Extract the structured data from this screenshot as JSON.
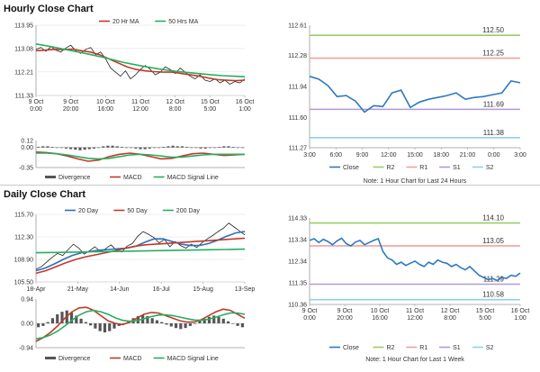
{
  "sections": {
    "hourly_title": "Hourly Close Chart",
    "daily_title": "Daily Close Chart"
  },
  "colors": {
    "price": "#222222",
    "ma_short": "#c0392b",
    "ma_long": "#27ae60",
    "ma_mid": "#2e6fb7",
    "close": "#2e79c0",
    "r2": "#9acd6a",
    "r1": "#f0a0a0",
    "s1": "#b39ad8",
    "s2": "#8fd0e8",
    "hist": "#555555",
    "macd": "#c0392b",
    "signal": "#27ae60"
  },
  "chart_data": [
    {
      "id": "hourly-price",
      "type": "line",
      "legend": [
        {
          "name": "20 Hr MA",
          "color_key": "ma_short"
        },
        {
          "name": "50 Hrs MA",
          "color_key": "ma_long"
        }
      ],
      "yticks": [
        "113.95",
        "113.08",
        "112.21",
        "111.33"
      ],
      "ylim": [
        111.33,
        113.95
      ],
      "xticks": [
        [
          "9 Oct",
          "0:00"
        ],
        [
          "9 Oct",
          "20:00"
        ],
        [
          "10 Oct",
          "16:00"
        ],
        [
          "11 Oct",
          "12:00"
        ],
        [
          "12 Oct",
          "8:00"
        ],
        [
          "15 Oct",
          "5:00"
        ],
        [
          "16 Oct",
          "1:00"
        ]
      ],
      "series": [
        {
          "color_key": "price",
          "values": [
            113.05,
            113.12,
            112.98,
            113.15,
            113.02,
            112.95,
            113.1,
            113.2,
            113.0,
            112.9,
            113.05,
            113.12,
            112.85,
            112.95,
            112.7,
            112.35,
            112.2,
            112.05,
            112.25,
            111.95,
            112.1,
            112.3,
            112.45,
            112.3,
            112.1,
            112.2,
            112.4,
            112.3,
            112.15,
            112.35,
            112.2,
            112.05,
            111.95,
            112.1,
            111.9,
            111.85,
            111.95,
            111.8,
            111.9,
            111.75,
            111.85,
            111.8,
            111.95
          ]
        },
        {
          "name": "20 Hr MA",
          "color_key": "ma_short",
          "values": [
            113.0,
            113.02,
            113.05,
            113.04,
            113.06,
            113.0,
            112.95,
            112.85,
            112.7,
            112.55,
            112.4,
            112.3,
            112.25,
            112.22,
            112.2,
            112.2,
            112.15,
            112.1,
            112.05,
            111.98,
            111.92,
            111.9,
            111.88,
            111.9
          ]
        },
        {
          "name": "50 Hrs MA",
          "color_key": "ma_long",
          "values": [
            113.25,
            113.18,
            113.1,
            113.02,
            112.94,
            112.85,
            112.76,
            112.66,
            112.56,
            112.48,
            112.4,
            112.33,
            112.27,
            112.22,
            112.18,
            112.14,
            112.1,
            112.07,
            112.05,
            112.03
          ]
        }
      ]
    },
    {
      "id": "hourly-macd",
      "type": "line",
      "legend": [
        {
          "name": "Divergence",
          "color_key": "hist"
        },
        {
          "name": "MACD",
          "color_key": "macd"
        },
        {
          "name": "MACD Signal Line",
          "color_key": "signal"
        }
      ],
      "yticks": [
        "0.12",
        "0.00",
        "-0.35"
      ],
      "ylim": [
        -0.35,
        0.12
      ],
      "histogram": [
        0.01,
        0.02,
        0.02,
        0.01,
        0.0,
        -0.01,
        -0.02,
        -0.03,
        -0.04,
        -0.05,
        -0.04,
        -0.03,
        -0.02,
        0.0,
        0.02,
        0.03,
        0.03,
        0.02,
        0.01,
        0.0,
        -0.01,
        -0.02,
        -0.03,
        -0.03,
        -0.02,
        -0.01,
        0.0,
        0.01,
        0.02,
        0.03,
        0.02,
        0.02,
        0.01,
        0.0,
        -0.01,
        -0.02,
        -0.02,
        -0.01,
        0.0,
        0.01,
        0.02,
        0.02,
        0.01,
        0.0,
        -0.01
      ],
      "series": [
        {
          "name": "MACD",
          "color_key": "macd",
          "values": [
            -0.08,
            -0.09,
            -0.11,
            -0.15,
            -0.2,
            -0.24,
            -0.22,
            -0.16,
            -0.12,
            -0.1,
            -0.12,
            -0.16,
            -0.2,
            -0.19,
            -0.15,
            -0.11,
            -0.1,
            -0.12,
            -0.14,
            -0.13,
            -0.12
          ]
        },
        {
          "name": "MACD Signal Line",
          "color_key": "signal",
          "values": [
            -0.1,
            -0.1,
            -0.11,
            -0.13,
            -0.16,
            -0.19,
            -0.2,
            -0.19,
            -0.16,
            -0.13,
            -0.12,
            -0.13,
            -0.15,
            -0.17,
            -0.17,
            -0.15,
            -0.13,
            -0.12,
            -0.12,
            -0.12,
            -0.12
          ]
        }
      ]
    },
    {
      "id": "hourly-pivot",
      "type": "line",
      "yticks": [
        "112.61",
        "112.28",
        "111.94",
        "111.60",
        "111.27"
      ],
      "ylim": [
        111.27,
        112.61
      ],
      "xticks": [
        "3:00",
        "6:00",
        "9:00",
        "12:00",
        "15:00",
        "18:00",
        "21:00",
        "0:00",
        "3:00"
      ],
      "levels": [
        {
          "name": "R2",
          "value": 112.5,
          "label": "112.50",
          "color_key": "r2"
        },
        {
          "name": "R1",
          "value": 112.25,
          "label": "112.25",
          "color_key": "r1"
        },
        {
          "name": "S1",
          "value": 111.69,
          "label": "111.69",
          "color_key": "s1"
        },
        {
          "name": "S2",
          "value": 111.38,
          "label": "111.38",
          "color_key": "s2"
        }
      ],
      "series": [
        {
          "name": "Close",
          "color_key": "close",
          "values": [
            112.05,
            112.02,
            111.95,
            111.83,
            111.84,
            111.78,
            111.66,
            111.73,
            111.72,
            111.87,
            111.9,
            111.71,
            111.77,
            111.8,
            111.82,
            111.84,
            111.87,
            111.8,
            111.82,
            111.83,
            111.85,
            111.87,
            112.0,
            111.98
          ]
        }
      ],
      "legend": [
        {
          "name": "Close",
          "color_key": "close"
        },
        {
          "name": "R2",
          "color_key": "r2"
        },
        {
          "name": "R1",
          "color_key": "r1"
        },
        {
          "name": "S1",
          "color_key": "s1"
        },
        {
          "name": "S2",
          "color_key": "s2"
        }
      ],
      "note": "Note: 1 Hour Chart for Last 24 Hours"
    },
    {
      "id": "daily-price",
      "type": "line",
      "legend": [
        {
          "name": "20 Day",
          "color_key": "ma_mid"
        },
        {
          "name": "50 Day",
          "color_key": "ma_short"
        },
        {
          "name": "200 Day",
          "color_key": "ma_long"
        }
      ],
      "yticks": [
        "115.70",
        "112.30",
        "108.90",
        "105.50"
      ],
      "ylim": [
        105.5,
        115.7
      ],
      "xticks": [
        "18-Apr",
        "21-May",
        "14-Jun",
        "16-Jul",
        "15-Aug",
        "13-Sep"
      ],
      "series": [
        {
          "color_key": "price",
          "values": [
            107.4,
            107.8,
            108.5,
            109.2,
            109.8,
            109.5,
            110.4,
            111.2,
            110.6,
            109.7,
            110.2,
            110.8,
            110.1,
            110.5,
            111.1,
            110.3,
            110.0,
            110.9,
            111.3,
            112.4,
            113.1,
            112.7,
            112.2,
            111.4,
            111.9,
            110.8,
            111.6,
            111.0,
            110.6,
            111.2,
            110.7,
            111.4,
            112.0,
            112.5,
            113.1,
            113.6,
            114.4,
            113.8,
            113.2,
            112.6
          ]
        },
        {
          "name": "20 Day",
          "color_key": "ma_mid",
          "values": [
            107.2,
            107.6,
            108.2,
            108.9,
            109.5,
            109.9,
            110.1,
            110.3,
            110.4,
            110.5,
            110.6,
            110.9,
            111.5,
            112.0,
            112.0,
            111.6,
            111.2,
            111.0,
            111.0,
            111.3,
            111.8,
            112.4,
            112.9,
            113.1
          ]
        },
        {
          "name": "50 Day",
          "color_key": "ma_short",
          "values": [
            106.8,
            107.2,
            107.8,
            108.4,
            108.9,
            109.3,
            109.6,
            109.9,
            110.2,
            110.6,
            110.9,
            111.1,
            111.2,
            111.3,
            111.4,
            111.5,
            111.6,
            111.7,
            111.8,
            111.9,
            112.0,
            112.1
          ]
        },
        {
          "name": "200 Day",
          "color_key": "ma_long",
          "values": [
            109.9,
            109.95,
            110.0,
            110.05,
            110.1,
            110.15,
            110.2,
            110.25,
            110.3,
            110.35,
            110.4,
            110.45
          ]
        }
      ]
    },
    {
      "id": "daily-macd",
      "type": "line",
      "legend": [
        {
          "name": "Divergence",
          "color_key": "hist"
        },
        {
          "name": "MACD",
          "color_key": "macd"
        },
        {
          "name": "MACD Signal Line",
          "color_key": "signal"
        }
      ],
      "yticks": [
        "0.94",
        "0.00",
        "-0.94"
      ],
      "ylim": [
        -0.94,
        0.94
      ],
      "histogram": [
        -0.15,
        -0.1,
        0.05,
        0.2,
        0.35,
        0.45,
        0.5,
        0.42,
        0.3,
        0.18,
        0.05,
        -0.08,
        -0.2,
        -0.3,
        -0.35,
        -0.3,
        -0.2,
        -0.1,
        0.0,
        0.1,
        0.2,
        0.28,
        0.32,
        0.28,
        0.2,
        0.12,
        0.05,
        -0.05,
        -0.12,
        -0.18,
        -0.22,
        -0.18,
        -0.1,
        0.0,
        0.1,
        0.18,
        0.25,
        0.3,
        0.25,
        0.18,
        0.08,
        -0.02,
        -0.1,
        -0.15
      ],
      "series": [
        {
          "name": "MACD",
          "color_key": "macd",
          "values": [
            -0.7,
            -0.55,
            -0.35,
            -0.1,
            0.2,
            0.45,
            0.6,
            0.62,
            0.5,
            0.3,
            0.1,
            0.0,
            -0.05,
            0.05,
            0.2,
            0.35,
            0.42,
            0.4,
            0.3,
            0.2,
            0.1,
            0.05,
            0.05,
            0.15,
            0.3,
            0.45,
            0.55,
            0.5,
            0.35,
            0.2
          ]
        },
        {
          "name": "MACD Signal Line",
          "color_key": "signal",
          "values": [
            -0.6,
            -0.55,
            -0.45,
            -0.3,
            -0.1,
            0.12,
            0.32,
            0.45,
            0.5,
            0.45,
            0.35,
            0.22,
            0.12,
            0.08,
            0.1,
            0.18,
            0.26,
            0.32,
            0.33,
            0.3,
            0.24,
            0.18,
            0.13,
            0.12,
            0.16,
            0.24,
            0.33,
            0.4,
            0.4,
            0.35
          ]
        }
      ]
    },
    {
      "id": "daily-pivot",
      "type": "line",
      "yticks": [
        "114.33",
        "113.34",
        "112.34",
        "111.35",
        "110.36"
      ],
      "ylim": [
        110.36,
        114.33
      ],
      "xticks": [
        [
          "9 Oct",
          "0:00"
        ],
        [
          "9 Oct",
          "20:00"
        ],
        [
          "10 Oct",
          "16:00"
        ],
        [
          "11 Oct",
          "12:00"
        ],
        [
          "12 Oct",
          "8:00"
        ],
        [
          "15 Oct",
          "5:00"
        ],
        [
          "16 Oct",
          "1:00"
        ]
      ],
      "levels": [
        {
          "name": "R2",
          "value": 114.1,
          "label": "114.10",
          "color_key": "r2"
        },
        {
          "name": "R1",
          "value": 113.05,
          "label": "113.05",
          "color_key": "r1"
        },
        {
          "name": "S1",
          "value": 111.29,
          "label": "111.29",
          "color_key": "s1"
        },
        {
          "name": "S2",
          "value": 110.58,
          "label": "110.58",
          "color_key": "s2"
        }
      ],
      "series": [
        {
          "name": "Close",
          "color_key": "close",
          "values": [
            113.3,
            113.38,
            113.2,
            113.35,
            113.25,
            113.1,
            113.28,
            113.4,
            113.15,
            113.05,
            113.22,
            113.3,
            113.1,
            113.2,
            113.3,
            113.38,
            112.8,
            112.5,
            112.4,
            112.2,
            112.3,
            112.15,
            112.25,
            112.35,
            112.2,
            112.1,
            112.3,
            112.2,
            112.4,
            112.3,
            112.25,
            112.1,
            112.2,
            112.05,
            111.95,
            112.1,
            111.9,
            111.7,
            111.6,
            111.5,
            111.55,
            111.45,
            111.6,
            111.55,
            111.7,
            111.65,
            111.8
          ]
        }
      ],
      "legend": [
        {
          "name": "Close",
          "color_key": "close"
        },
        {
          "name": "R2",
          "color_key": "r2"
        },
        {
          "name": "R1",
          "color_key": "r1"
        },
        {
          "name": "S1",
          "color_key": "s1"
        },
        {
          "name": "S2",
          "color_key": "s2"
        }
      ],
      "note": "Note: 1 Hour Chart for Last 1 Week"
    }
  ]
}
